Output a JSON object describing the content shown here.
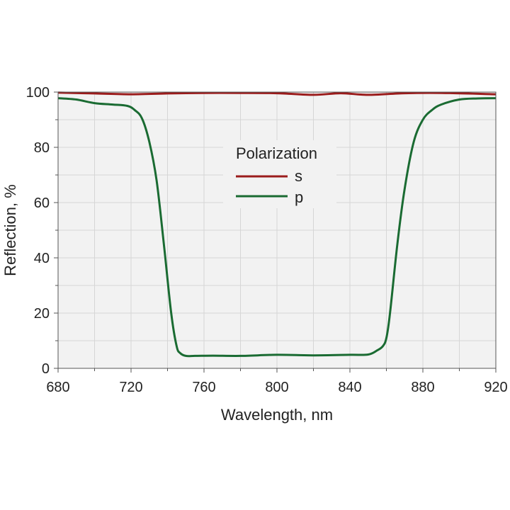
{
  "chart_data": {
    "type": "line",
    "xlabel": "Wavelength, nm",
    "ylabel": "Reflection, %",
    "xlim": [
      680,
      920
    ],
    "ylim": [
      0,
      100
    ],
    "x_ticks": [
      680,
      720,
      760,
      800,
      840,
      880,
      920
    ],
    "y_ticks": [
      0,
      20,
      40,
      60,
      80,
      100
    ],
    "x_tick_labels": [
      "680",
      "720",
      "760",
      "800",
      "840",
      "880",
      "920"
    ],
    "y_tick_labels": [
      "0",
      "20",
      "40",
      "60",
      "80",
      "100"
    ],
    "grid": true,
    "legend": {
      "title": "Polarization",
      "placement": "center"
    },
    "series": [
      {
        "name": "s",
        "color": "#9b1c1c",
        "x": [
          680,
          700,
          720,
          740,
          760,
          780,
          800,
          820,
          835,
          850,
          870,
          890,
          920
        ],
        "y": [
          99.8,
          99.5,
          99.2,
          99.5,
          99.7,
          99.7,
          99.6,
          99.0,
          99.6,
          99.0,
          99.6,
          99.7,
          99.2
        ]
      },
      {
        "name": "p",
        "color": "#1a6b32",
        "x": [
          680,
          690,
          700,
          710,
          718,
          722,
          726,
          730,
          734,
          738,
          742,
          745,
          747,
          750,
          755,
          765,
          780,
          800,
          820,
          840,
          850,
          855,
          858,
          860,
          862,
          866,
          870,
          875,
          880,
          885,
          890,
          900,
          910,
          920
        ],
        "y": [
          97.8,
          97.3,
          96.0,
          95.5,
          95.0,
          93.5,
          90.5,
          82.0,
          68.0,
          45.0,
          20.0,
          8.0,
          5.5,
          4.5,
          4.5,
          4.6,
          4.5,
          4.9,
          4.7,
          4.9,
          5.0,
          6.5,
          8.0,
          11.0,
          20.0,
          45.0,
          65.0,
          82.0,
          90.0,
          93.5,
          95.5,
          97.3,
          97.7,
          97.8
        ]
      }
    ]
  }
}
